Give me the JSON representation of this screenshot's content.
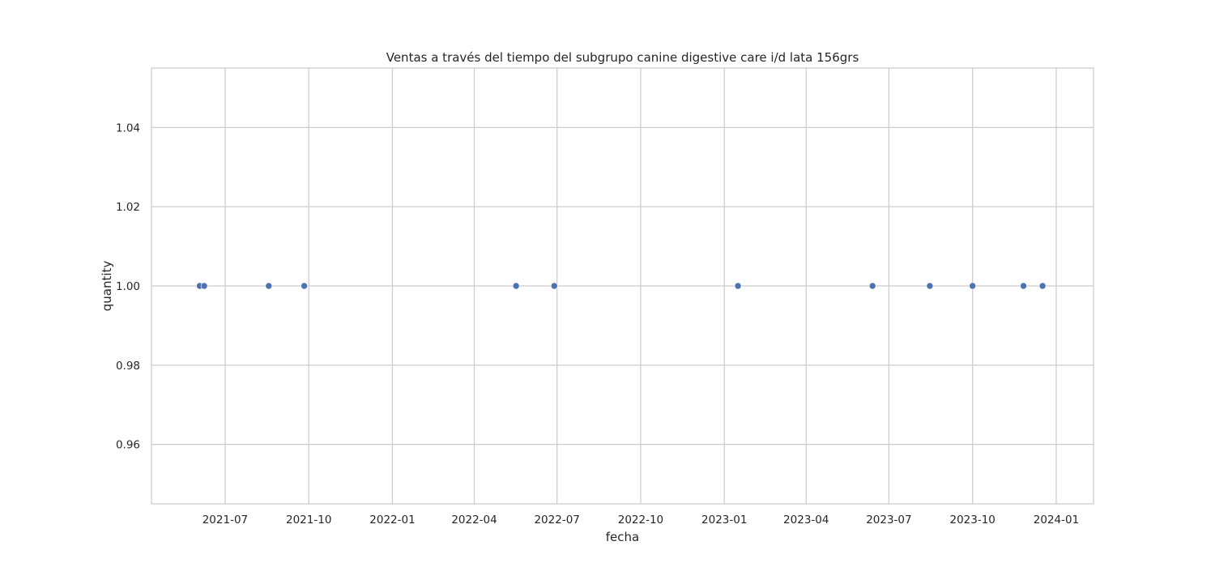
{
  "chart_data": {
    "type": "scatter",
    "title": "Ventas a través del tiempo del subgrupo canine digestive care i/d lata 156grs",
    "xlabel": "fecha",
    "ylabel": "quantity",
    "x_type": "date",
    "xlim": [
      "2021-04-11",
      "2024-02-11"
    ],
    "ylim": [
      0.945,
      1.055
    ],
    "x_ticks": [
      "2021-07-01",
      "2021-10-01",
      "2022-01-01",
      "2022-04-01",
      "2022-07-01",
      "2022-10-01",
      "2023-01-01",
      "2023-04-01",
      "2023-07-01",
      "2023-10-01",
      "2024-01-01"
    ],
    "x_tick_labels": [
      "2021-07",
      "2021-10",
      "2022-01",
      "2022-04",
      "2022-07",
      "2022-10",
      "2023-01",
      "2023-04",
      "2023-07",
      "2023-10",
      "2024-01"
    ],
    "y_ticks": [
      0.96,
      0.98,
      1.0,
      1.02,
      1.04
    ],
    "y_tick_labels": [
      "0.96",
      "0.98",
      "1.00",
      "1.02",
      "1.04"
    ],
    "grid": true,
    "series": [
      {
        "color": "#4c72b0",
        "x": [
          "2021-06-03",
          "2021-06-08",
          "2021-08-18",
          "2021-09-26",
          "2022-05-17",
          "2022-06-28",
          "2023-01-16",
          "2023-06-13",
          "2023-08-15",
          "2023-10-01",
          "2023-11-26",
          "2023-12-17"
        ],
        "y": [
          1,
          1,
          1,
          1,
          1,
          1,
          1,
          1,
          1,
          1,
          1,
          1
        ]
      }
    ]
  }
}
